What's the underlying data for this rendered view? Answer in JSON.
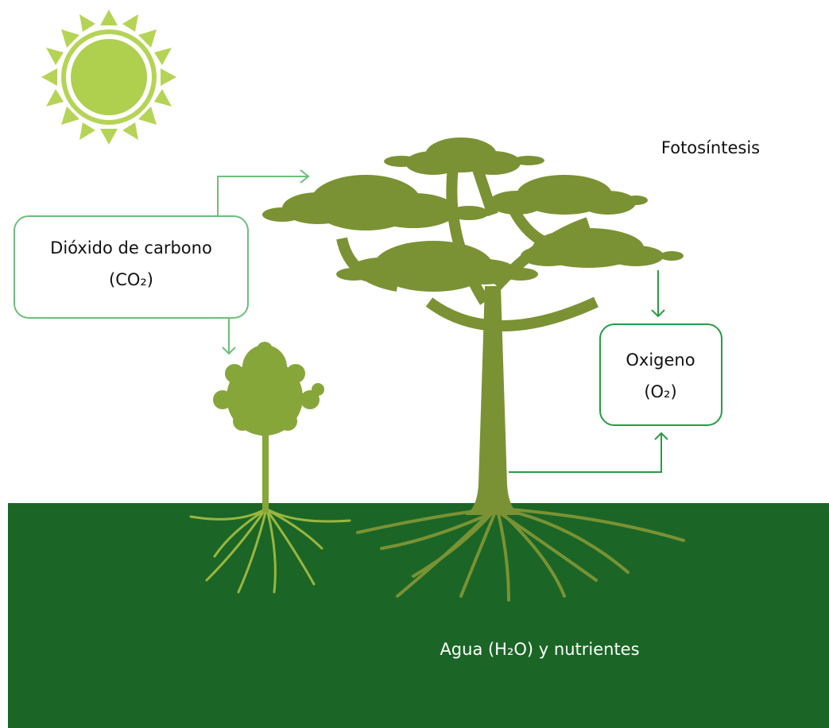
{
  "title": "Fotosíntesis",
  "co2": {
    "line1": "Dióxido de carbono",
    "line2": "(CO₂)"
  },
  "oxygen": {
    "line1": "Oxigeno",
    "line2": "(O₂)"
  },
  "water": "Agua (H₂O) y nutrientes"
}
